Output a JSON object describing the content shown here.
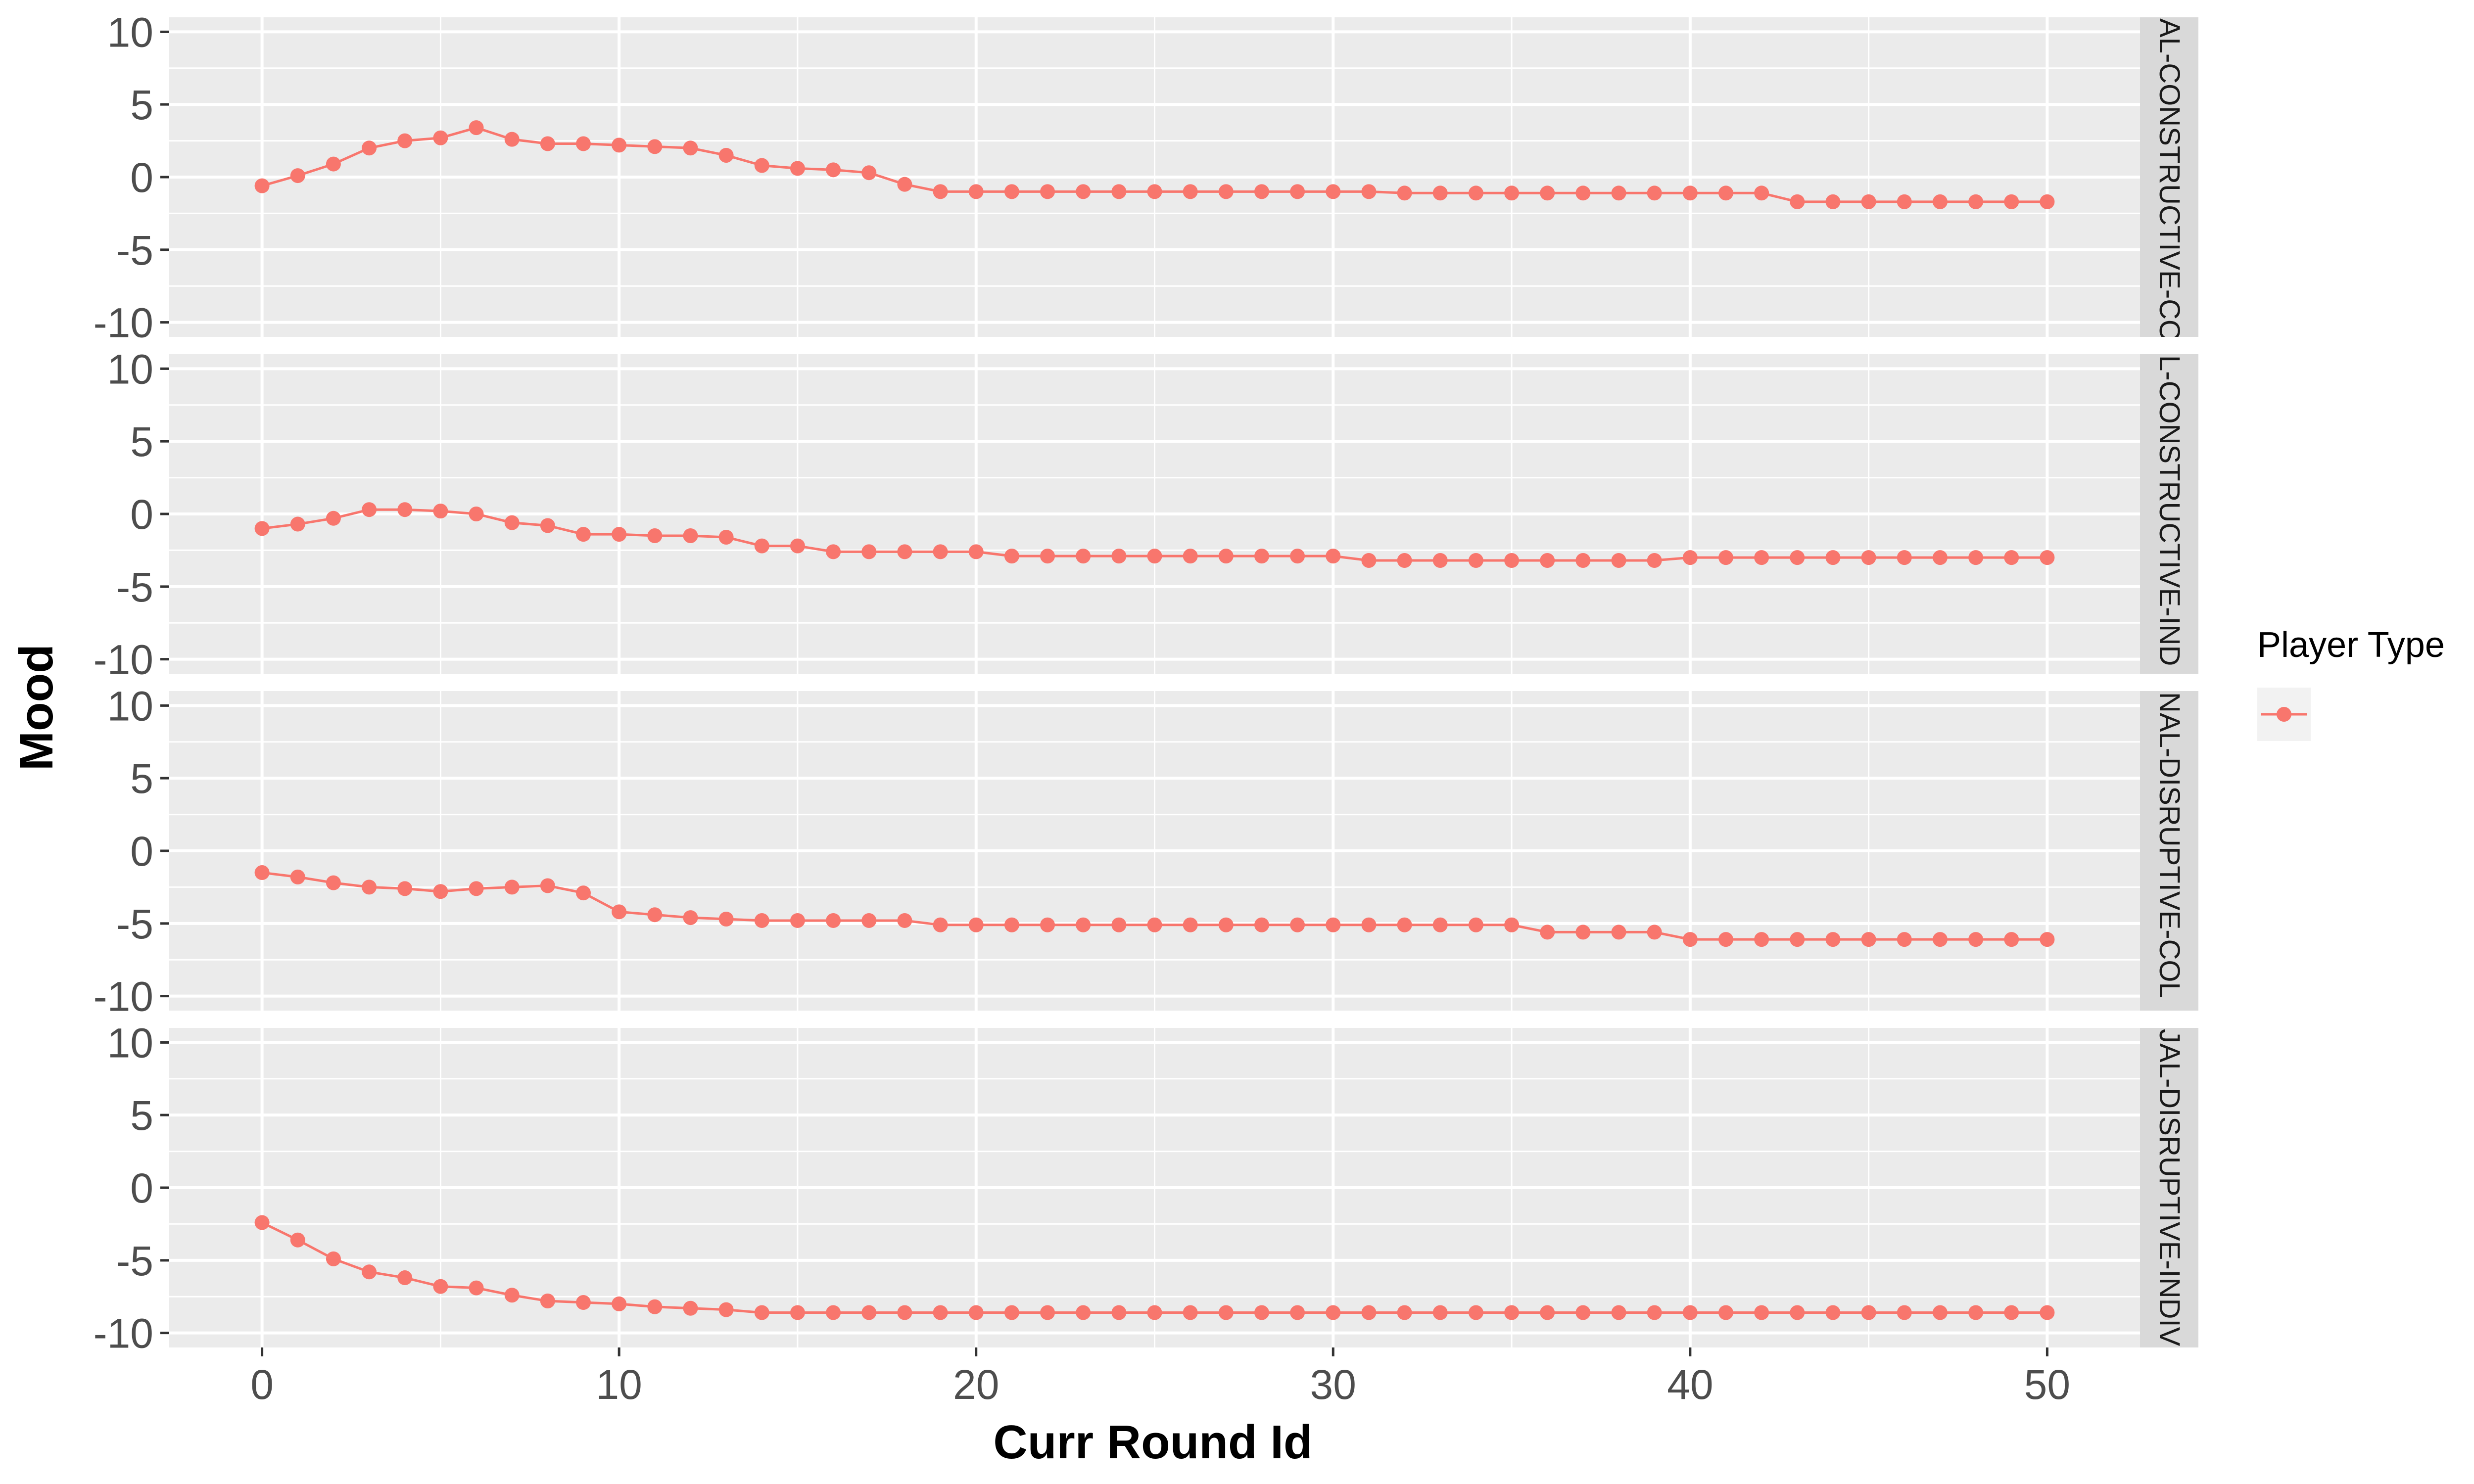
{
  "chart_data": {
    "type": "line",
    "facet_layout": "rows",
    "xlabel": "Curr Round Id",
    "ylabel": "Mood",
    "x_ticks": [
      0,
      10,
      20,
      30,
      40,
      50
    ],
    "y_ticks": [
      10,
      5,
      0,
      -5,
      -10
    ],
    "xlim": [
      -2.6,
      52.6
    ],
    "ylim": [
      -11,
      11
    ],
    "grid": true,
    "legend": {
      "title": "Player Type",
      "placement": "right",
      "entries": [
        ""
      ]
    },
    "colors": {
      "series": "#F8766D",
      "panel_bg": "#EBEBEB",
      "grid": "#FFFFFF",
      "strip_bg": "#D9D9D9",
      "tick_text": "#4D4D4D",
      "tick_mark": "#333333"
    },
    "x": [
      0,
      1,
      2,
      3,
      4,
      5,
      6,
      7,
      8,
      9,
      10,
      11,
      12,
      13,
      14,
      15,
      16,
      17,
      18,
      19,
      20,
      21,
      22,
      23,
      24,
      25,
      26,
      27,
      28,
      29,
      30,
      31,
      32,
      33,
      34,
      35,
      36,
      37,
      38,
      39,
      40,
      41,
      42,
      43,
      44,
      45,
      46,
      47,
      48,
      49,
      50
    ],
    "panels": [
      {
        "strip_label": "AL-CONSTRUCTIVE-CO",
        "values": [
          -0.6,
          0.1,
          0.9,
          2.0,
          2.5,
          2.7,
          3.4,
          2.6,
          2.3,
          2.3,
          2.2,
          2.1,
          2.0,
          1.5,
          0.8,
          0.6,
          0.5,
          0.3,
          -0.5,
          -1.0,
          -1.0,
          -1.0,
          -1.0,
          -1.0,
          -1.0,
          -1.0,
          -1.0,
          -1.0,
          -1.0,
          -1.0,
          -1.0,
          -1.0,
          -1.1,
          -1.1,
          -1.1,
          -1.1,
          -1.1,
          -1.1,
          -1.1,
          -1.1,
          -1.1,
          -1.1,
          -1.1,
          -1.7,
          -1.7,
          -1.7,
          -1.7,
          -1.7,
          -1.7,
          -1.7,
          -1.7
        ]
      },
      {
        "strip_label": "L-CONSTRUCTIVE-IND",
        "values": [
          -1.0,
          -0.7,
          -0.3,
          0.3,
          0.3,
          0.2,
          0.0,
          -0.6,
          -0.8,
          -1.4,
          -1.4,
          -1.5,
          -1.5,
          -1.6,
          -2.2,
          -2.2,
          -2.6,
          -2.6,
          -2.6,
          -2.6,
          -2.6,
          -2.9,
          -2.9,
          -2.9,
          -2.9,
          -2.9,
          -2.9,
          -2.9,
          -2.9,
          -2.9,
          -2.9,
          -3.2,
          -3.2,
          -3.2,
          -3.2,
          -3.2,
          -3.2,
          -3.2,
          -3.2,
          -3.2,
          -3.0,
          -3.0,
          -3.0,
          -3.0,
          -3.0,
          -3.0,
          -3.0,
          -3.0,
          -3.0,
          -3.0,
          -3.0
        ]
      },
      {
        "strip_label": "NAL-DISRUPTIVE-COL",
        "values": [
          -1.5,
          -1.8,
          -2.2,
          -2.5,
          -2.6,
          -2.8,
          -2.6,
          -2.5,
          -2.4,
          -2.9,
          -4.2,
          -4.4,
          -4.6,
          -4.7,
          -4.8,
          -4.8,
          -4.8,
          -4.8,
          -4.8,
          -5.1,
          -5.1,
          -5.1,
          -5.1,
          -5.1,
          -5.1,
          -5.1,
          -5.1,
          -5.1,
          -5.1,
          -5.1,
          -5.1,
          -5.1,
          -5.1,
          -5.1,
          -5.1,
          -5.1,
          -5.6,
          -5.6,
          -5.6,
          -5.6,
          -6.1,
          -6.1,
          -6.1,
          -6.1,
          -6.1,
          -6.1,
          -6.1,
          -6.1,
          -6.1,
          -6.1,
          -6.1
        ]
      },
      {
        "strip_label": "JAL-DISRUPTIVE-INDIV",
        "values": [
          -2.4,
          -3.6,
          -4.9,
          -5.8,
          -6.2,
          -6.8,
          -6.9,
          -7.4,
          -7.8,
          -7.9,
          -8.0,
          -8.2,
          -8.3,
          -8.4,
          -8.6,
          -8.6,
          -8.6,
          -8.6,
          -8.6,
          -8.6,
          -8.6,
          -8.6,
          -8.6,
          -8.6,
          -8.6,
          -8.6,
          -8.6,
          -8.6,
          -8.6,
          -8.6,
          -8.6,
          -8.6,
          -8.6,
          -8.6,
          -8.6,
          -8.6,
          -8.6,
          -8.6,
          -8.6,
          -8.6,
          -8.6,
          -8.6,
          -8.6,
          -8.6,
          -8.6,
          -8.6,
          -8.6,
          -8.6,
          -8.6,
          -8.6,
          -8.6
        ]
      }
    ]
  }
}
